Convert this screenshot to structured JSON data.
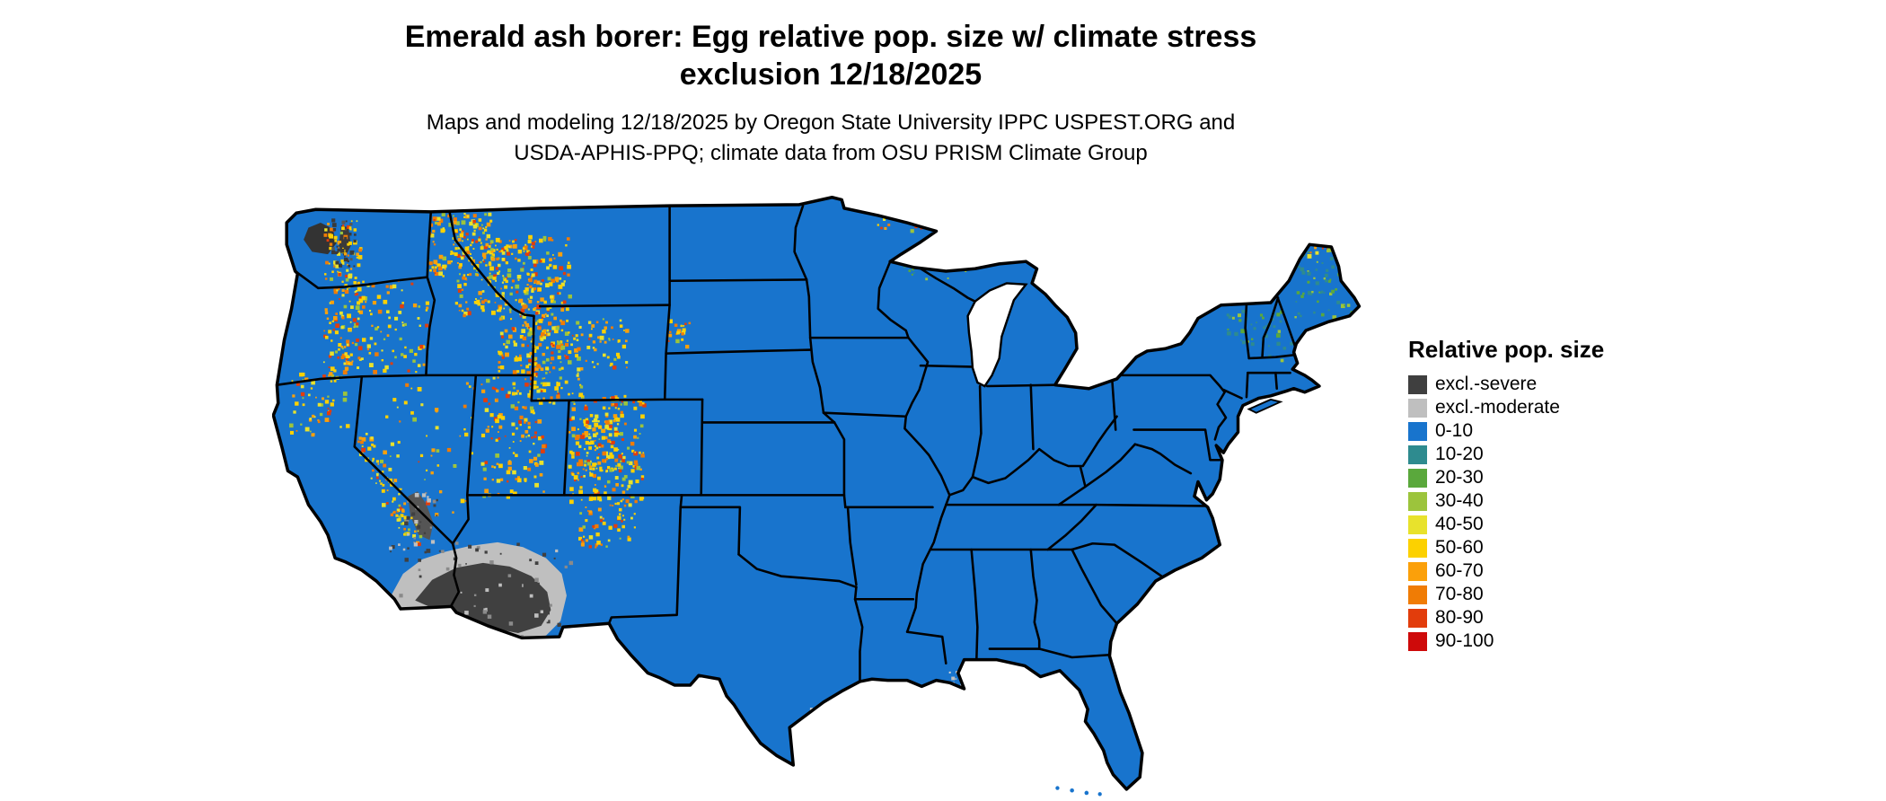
{
  "figure": {
    "title_line1": "Emerald ash borer: Egg relative pop. size w/ climate stress",
    "title_line2": "exclusion 12/18/2025",
    "subtitle_line1": "Maps and modeling 12/18/2025 by Oregon State University IPPC USPEST.ORG and",
    "subtitle_line2": "USDA-APHIS-PPQ; climate data from OSU PRISM Climate Group"
  },
  "legend": {
    "title": "Relative pop. size",
    "items": [
      {
        "label": "excl.-severe",
        "color": "#3f3f3f"
      },
      {
        "label": "excl.-moderate",
        "color": "#bfbfbf"
      },
      {
        "label": "0-10",
        "color": "#1874cd"
      },
      {
        "label": "10-20",
        "color": "#2e8b8f"
      },
      {
        "label": "20-30",
        "color": "#5aa83c"
      },
      {
        "label": "30-40",
        "color": "#9cc43c"
      },
      {
        "label": "40-50",
        "color": "#e8e22c"
      },
      {
        "label": "50-60",
        "color": "#fcd100"
      },
      {
        "label": "60-70",
        "color": "#fba00a"
      },
      {
        "label": "70-80",
        "color": "#f07c05"
      },
      {
        "label": "80-90",
        "color": "#e23d0c"
      },
      {
        "label": "90-100",
        "color": "#ce0a0a"
      }
    ]
  },
  "map": {
    "base_color": "#1874cd",
    "border_color": "#000000",
    "water_color": "#ffffff",
    "palettes": {
      "hot": [
        "#fcd100",
        "#fba00a",
        "#e8e22c",
        "#f07c05",
        "#e23d0c",
        "#9cc43c"
      ],
      "cool": [
        "#2e8b8f",
        "#5aa83c",
        "#9cc43c"
      ],
      "gray": [
        "#404040",
        "#8a8a8a",
        "#bfbfbf"
      ],
      "graylight": [
        "#bfbfbf",
        "#d4d4d4"
      ],
      "graydark": [
        "#3a3a3a",
        "#565656",
        "#fcd100"
      ]
    }
  }
}
